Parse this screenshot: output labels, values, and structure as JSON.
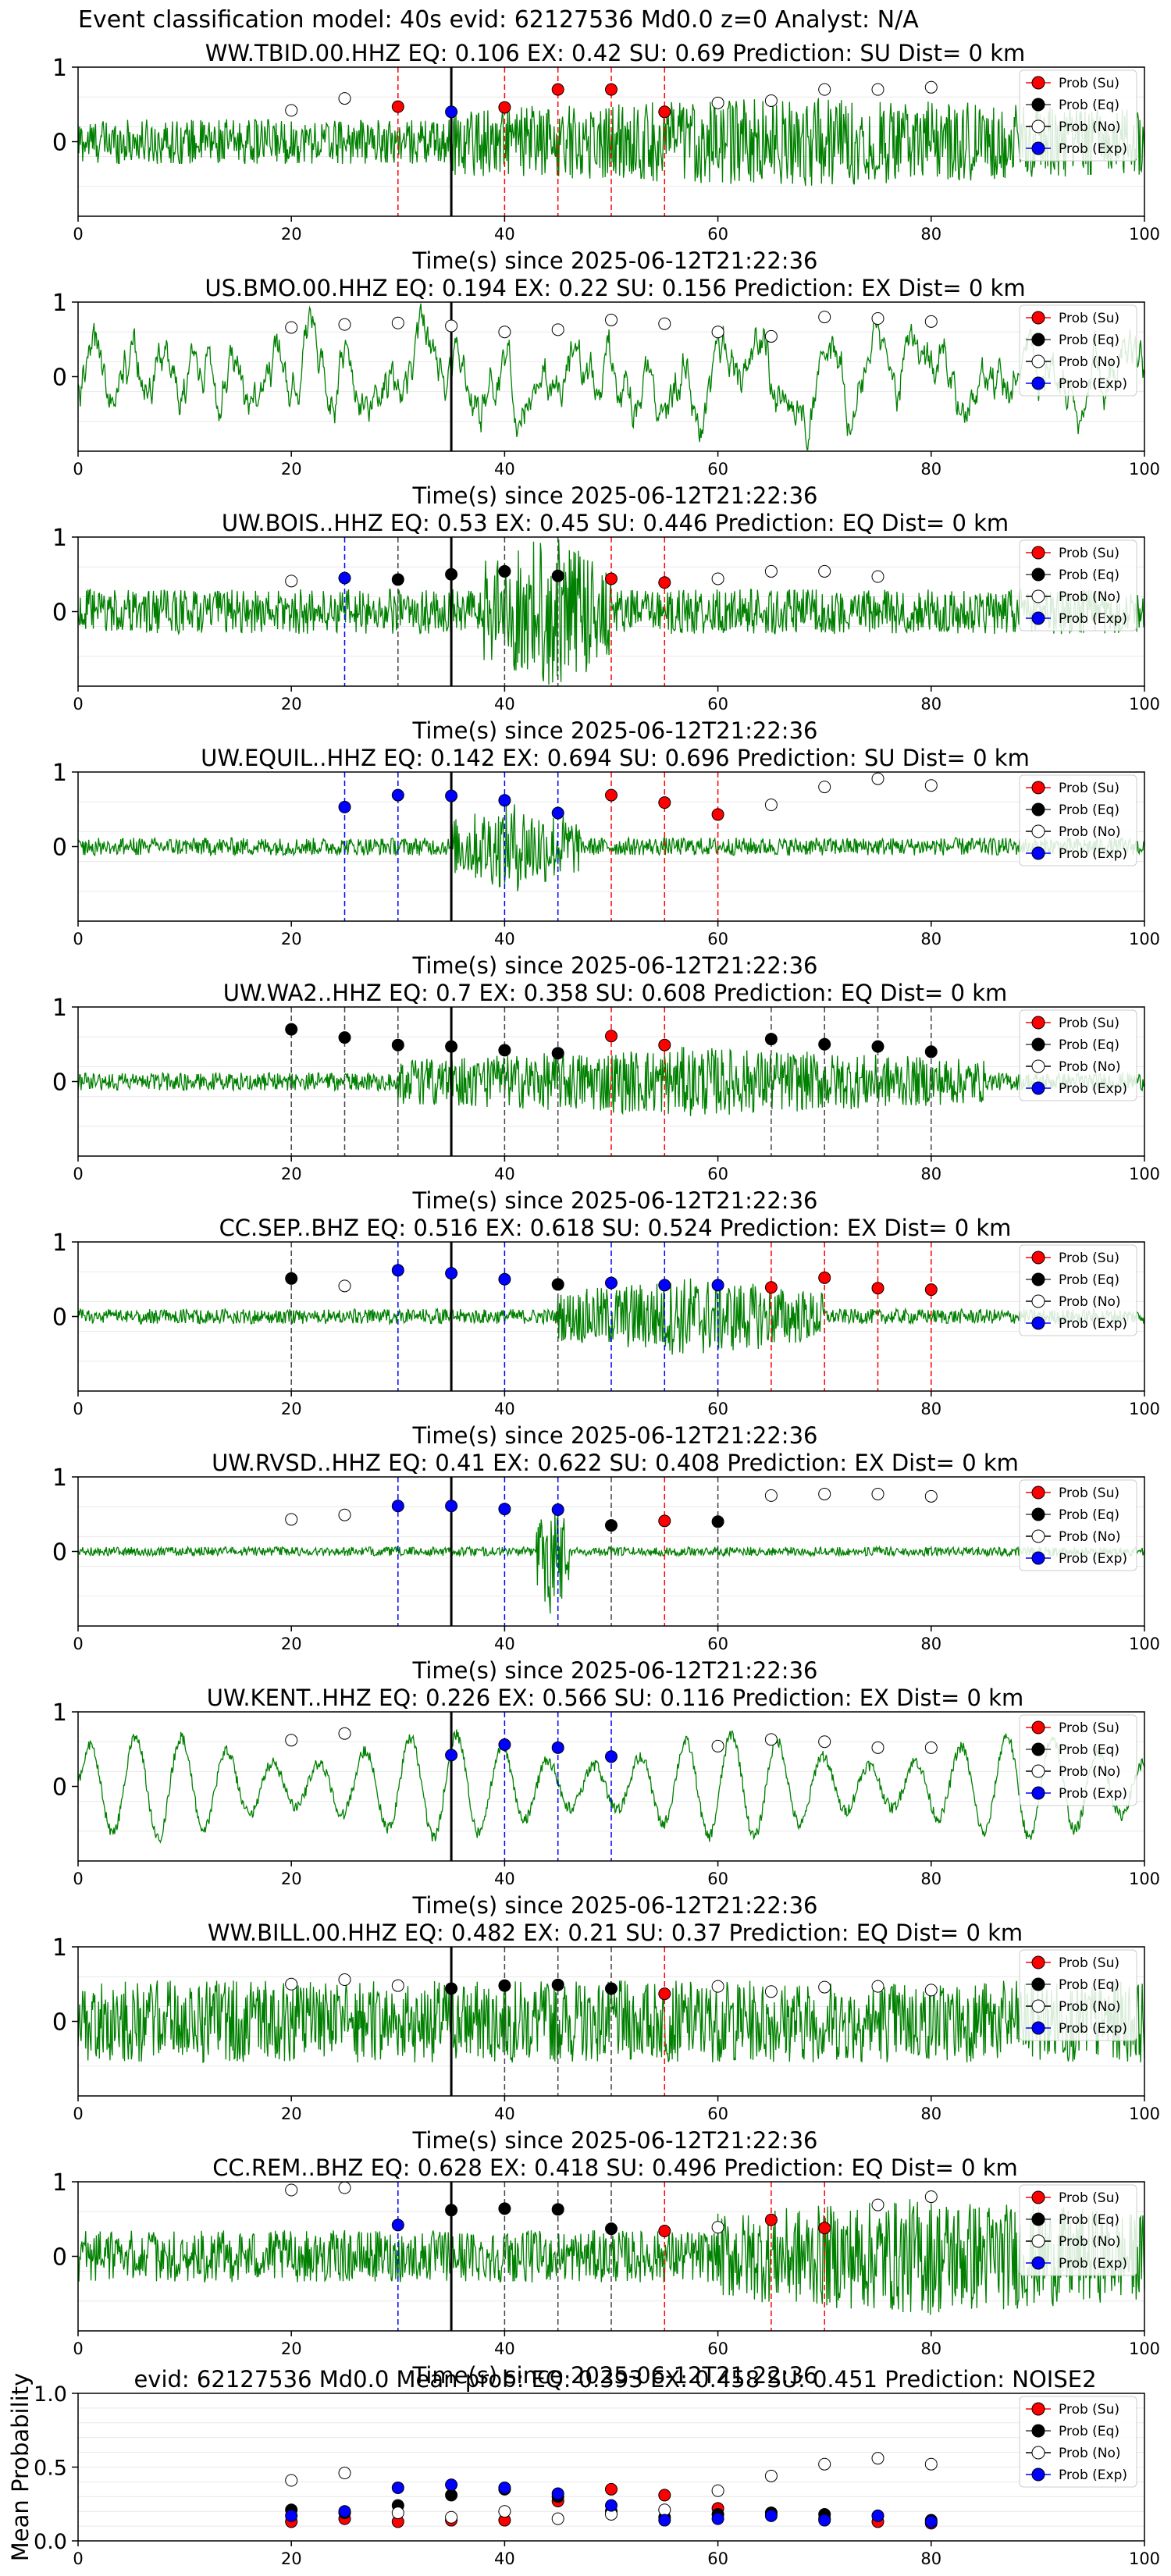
{
  "title": "Event classification model: 40s evid: 62127536 Md0.0 z=0 Analyst: N/A",
  "colors": {
    "trace": "#008000",
    "su": "#ff0000",
    "eq": "#000000",
    "no": "#ffffff",
    "exp": "#0000ff",
    "grid": "#e8e8e8"
  },
  "legend": [
    "Prob (Su)",
    "Prob (Eq)",
    "Prob (No)",
    "Prob (Exp)"
  ],
  "chart_data": [
    {
      "type": "line",
      "title": "WW.TBID.00.HHZ   EQ: 0.106   EX: 0.42   SU: 0.69   Prediction: SU    Dist= 0 km",
      "xlabel": "Time(s) since 2025-06-12T21:22:36",
      "xlim": [
        0,
        100
      ],
      "ylim": [
        -1,
        1
      ],
      "xticks": [
        0,
        20,
        40,
        60,
        80,
        100
      ],
      "yticks": [
        0,
        1
      ],
      "event_time": 35,
      "waveform": {
        "style": "noise",
        "amp": 0.3,
        "burst": [
          35,
          100,
          0.3
        ]
      },
      "probs": [
        {
          "t": 20,
          "c": "no",
          "p": 0.42
        },
        {
          "t": 25,
          "c": "no",
          "p": 0.58
        },
        {
          "t": 30,
          "c": "su",
          "p": 0.47
        },
        {
          "t": 35,
          "c": "exp",
          "p": 0.4
        },
        {
          "t": 40,
          "c": "su",
          "p": 0.46
        },
        {
          "t": 45,
          "c": "su",
          "p": 0.7
        },
        {
          "t": 50,
          "c": "su",
          "p": 0.7
        },
        {
          "t": 55,
          "c": "su",
          "p": 0.4
        },
        {
          "t": 60,
          "c": "no",
          "p": 0.52
        },
        {
          "t": 65,
          "c": "no",
          "p": 0.55
        },
        {
          "t": 70,
          "c": "no",
          "p": 0.7
        },
        {
          "t": 75,
          "c": "no",
          "p": 0.7
        },
        {
          "t": 80,
          "c": "no",
          "p": 0.73
        }
      ]
    },
    {
      "type": "line",
      "title": "US.BMO.00.HHZ   EQ: 0.194   EX: 0.22   SU: 0.156   Prediction: EX    Dist= 0 km",
      "xlabel": "Time(s) since 2025-06-12T21:22:36",
      "xlim": [
        0,
        100
      ],
      "ylim": [
        -1,
        1
      ],
      "xticks": [
        0,
        20,
        40,
        60,
        80,
        100
      ],
      "yticks": [
        0,
        1
      ],
      "event_time": 35,
      "waveform": {
        "style": "wavy",
        "amp": 0.55,
        "period": 3.5
      },
      "probs": [
        {
          "t": 20,
          "c": "no",
          "p": 0.66
        },
        {
          "t": 25,
          "c": "no",
          "p": 0.7
        },
        {
          "t": 30,
          "c": "no",
          "p": 0.72
        },
        {
          "t": 35,
          "c": "no",
          "p": 0.68
        },
        {
          "t": 40,
          "c": "no",
          "p": 0.6
        },
        {
          "t": 45,
          "c": "no",
          "p": 0.63
        },
        {
          "t": 50,
          "c": "no",
          "p": 0.76
        },
        {
          "t": 55,
          "c": "no",
          "p": 0.71
        },
        {
          "t": 60,
          "c": "no",
          "p": 0.6
        },
        {
          "t": 65,
          "c": "no",
          "p": 0.54
        },
        {
          "t": 70,
          "c": "no",
          "p": 0.8
        },
        {
          "t": 75,
          "c": "no",
          "p": 0.78
        },
        {
          "t": 80,
          "c": "no",
          "p": 0.74
        }
      ]
    },
    {
      "type": "line",
      "title": "UW.BOIS..HHZ   EQ: 0.53   EX: 0.45   SU: 0.446   Prediction: EQ    Dist= 0 km",
      "xlabel": "Time(s) since 2025-06-12T21:22:36",
      "xlim": [
        0,
        100
      ],
      "ylim": [
        -1,
        1
      ],
      "xticks": [
        0,
        20,
        40,
        60,
        80,
        100
      ],
      "yticks": [
        0,
        1
      ],
      "event_time": 35,
      "waveform": {
        "style": "noise",
        "amp": 0.3,
        "burst": [
          38,
          50,
          0.75
        ]
      },
      "probs": [
        {
          "t": 20,
          "c": "no",
          "p": 0.41
        },
        {
          "t": 25,
          "c": "exp",
          "p": 0.45
        },
        {
          "t": 30,
          "c": "eq",
          "p": 0.43
        },
        {
          "t": 35,
          "c": "eq",
          "p": 0.5
        },
        {
          "t": 40,
          "c": "eq",
          "p": 0.54
        },
        {
          "t": 45,
          "c": "eq",
          "p": 0.48
        },
        {
          "t": 50,
          "c": "su",
          "p": 0.44
        },
        {
          "t": 55,
          "c": "su",
          "p": 0.39
        },
        {
          "t": 60,
          "c": "no",
          "p": 0.44
        },
        {
          "t": 65,
          "c": "no",
          "p": 0.54
        },
        {
          "t": 70,
          "c": "no",
          "p": 0.54
        },
        {
          "t": 75,
          "c": "no",
          "p": 0.47
        }
      ]
    },
    {
      "type": "line",
      "title": "UW.EQUIL..HHZ   EQ: 0.142   EX: 0.694   SU: 0.696   Prediction: SU    Dist= 0 km",
      "xlabel": "Time(s) since 2025-06-12T21:22:36",
      "xlim": [
        0,
        100
      ],
      "ylim": [
        -1,
        1
      ],
      "xticks": [
        0,
        20,
        40,
        60,
        80,
        100
      ],
      "yticks": [
        0,
        1
      ],
      "event_time": 35,
      "waveform": {
        "style": "noise",
        "amp": 0.12,
        "burst": [
          35,
          47,
          0.5
        ]
      },
      "probs": [
        {
          "t": 25,
          "c": "exp",
          "p": 0.53
        },
        {
          "t": 30,
          "c": "exp",
          "p": 0.69
        },
        {
          "t": 35,
          "c": "exp",
          "p": 0.68
        },
        {
          "t": 40,
          "c": "exp",
          "p": 0.62
        },
        {
          "t": 45,
          "c": "exp",
          "p": 0.45
        },
        {
          "t": 50,
          "c": "su",
          "p": 0.69
        },
        {
          "t": 55,
          "c": "su",
          "p": 0.59
        },
        {
          "t": 60,
          "c": "su",
          "p": 0.43
        },
        {
          "t": 65,
          "c": "no",
          "p": 0.56
        },
        {
          "t": 70,
          "c": "no",
          "p": 0.8
        },
        {
          "t": 75,
          "c": "no",
          "p": 0.91
        },
        {
          "t": 80,
          "c": "no",
          "p": 0.82
        }
      ]
    },
    {
      "type": "line",
      "title": "UW.WA2..HHZ   EQ: 0.7   EX: 0.358   SU: 0.608   Prediction: EQ    Dist= 0 km",
      "xlabel": "Time(s) since 2025-06-12T21:22:36",
      "xlim": [
        0,
        100
      ],
      "ylim": [
        -1,
        1
      ],
      "xticks": [
        0,
        20,
        40,
        60,
        80,
        100
      ],
      "yticks": [
        0,
        1
      ],
      "event_time": 35,
      "waveform": {
        "style": "noise",
        "amp": 0.12,
        "burst": [
          30,
          85,
          0.35
        ]
      },
      "probs": [
        {
          "t": 20,
          "c": "eq",
          "p": 0.7
        },
        {
          "t": 25,
          "c": "eq",
          "p": 0.59
        },
        {
          "t": 30,
          "c": "eq",
          "p": 0.49
        },
        {
          "t": 35,
          "c": "eq",
          "p": 0.47
        },
        {
          "t": 40,
          "c": "eq",
          "p": 0.42
        },
        {
          "t": 45,
          "c": "eq",
          "p": 0.38
        },
        {
          "t": 50,
          "c": "su",
          "p": 0.61
        },
        {
          "t": 55,
          "c": "su",
          "p": 0.49
        },
        {
          "t": 65,
          "c": "eq",
          "p": 0.57
        },
        {
          "t": 70,
          "c": "eq",
          "p": 0.5
        },
        {
          "t": 75,
          "c": "eq",
          "p": 0.47
        },
        {
          "t": 80,
          "c": "eq",
          "p": 0.4
        }
      ]
    },
    {
      "type": "line",
      "title": "CC.SEP..BHZ   EQ: 0.516   EX: 0.618   SU: 0.524   Prediction: EX    Dist= 0 km",
      "xlabel": "Time(s) since 2025-06-12T21:22:36",
      "xlim": [
        0,
        100
      ],
      "ylim": [
        -1,
        1
      ],
      "xticks": [
        0,
        20,
        40,
        60,
        80,
        100
      ],
      "yticks": [
        0,
        1
      ],
      "event_time": 35,
      "waveform": {
        "style": "noise",
        "amp": 0.1,
        "burst": [
          45,
          70,
          0.45
        ]
      },
      "probs": [
        {
          "t": 20,
          "c": "eq",
          "p": 0.51
        },
        {
          "t": 25,
          "c": "no",
          "p": 0.41
        },
        {
          "t": 30,
          "c": "exp",
          "p": 0.62
        },
        {
          "t": 35,
          "c": "exp",
          "p": 0.58
        },
        {
          "t": 40,
          "c": "exp",
          "p": 0.5
        },
        {
          "t": 45,
          "c": "eq",
          "p": 0.43
        },
        {
          "t": 50,
          "c": "exp",
          "p": 0.45
        },
        {
          "t": 55,
          "c": "exp",
          "p": 0.42
        },
        {
          "t": 60,
          "c": "exp",
          "p": 0.42
        },
        {
          "t": 65,
          "c": "su",
          "p": 0.39
        },
        {
          "t": 70,
          "c": "su",
          "p": 0.52
        },
        {
          "t": 75,
          "c": "su",
          "p": 0.38
        },
        {
          "t": 80,
          "c": "su",
          "p": 0.36
        }
      ]
    },
    {
      "type": "line",
      "title": "UW.RVSD..HHZ   EQ: 0.41   EX: 0.622   SU: 0.408   Prediction: EX    Dist= 0 km",
      "xlabel": "Time(s) since 2025-06-12T21:22:36",
      "xlim": [
        0,
        100
      ],
      "ylim": [
        -1,
        1
      ],
      "xticks": [
        0,
        20,
        40,
        60,
        80,
        100
      ],
      "yticks": [
        0,
        1
      ],
      "event_time": 35,
      "waveform": {
        "style": "noise",
        "amp": 0.06,
        "burst": [
          43,
          46,
          0.85
        ]
      },
      "probs": [
        {
          "t": 20,
          "c": "no",
          "p": 0.43
        },
        {
          "t": 25,
          "c": "no",
          "p": 0.49
        },
        {
          "t": 30,
          "c": "exp",
          "p": 0.61
        },
        {
          "t": 35,
          "c": "exp",
          "p": 0.61
        },
        {
          "t": 40,
          "c": "exp",
          "p": 0.57
        },
        {
          "t": 45,
          "c": "exp",
          "p": 0.56
        },
        {
          "t": 50,
          "c": "eq",
          "p": 0.35
        },
        {
          "t": 55,
          "c": "su",
          "p": 0.41
        },
        {
          "t": 60,
          "c": "eq",
          "p": 0.4
        },
        {
          "t": 65,
          "c": "no",
          "p": 0.75
        },
        {
          "t": 70,
          "c": "no",
          "p": 0.77
        },
        {
          "t": 75,
          "c": "no",
          "p": 0.77
        },
        {
          "t": 80,
          "c": "no",
          "p": 0.74
        }
      ]
    },
    {
      "type": "line",
      "title": "UW.KENT..HHZ   EQ: 0.226   EX: 0.566   SU: 0.116   Prediction: EX    Dist= 0 km",
      "xlabel": "Time(s) since 2025-06-12T21:22:36",
      "xlim": [
        0,
        100
      ],
      "ylim": [
        -1,
        1
      ],
      "xticks": [
        0,
        20,
        40,
        60,
        80,
        100
      ],
      "yticks": [
        0,
        1
      ],
      "event_time": 35,
      "waveform": {
        "style": "sine",
        "amp": 0.7,
        "period": 4.3
      },
      "probs": [
        {
          "t": 20,
          "c": "no",
          "p": 0.62
        },
        {
          "t": 25,
          "c": "no",
          "p": 0.71
        },
        {
          "t": 35,
          "c": "exp",
          "p": 0.42
        },
        {
          "t": 40,
          "c": "exp",
          "p": 0.56
        },
        {
          "t": 45,
          "c": "exp",
          "p": 0.52
        },
        {
          "t": 50,
          "c": "exp",
          "p": 0.4
        },
        {
          "t": 60,
          "c": "no",
          "p": 0.54
        },
        {
          "t": 65,
          "c": "no",
          "p": 0.63
        },
        {
          "t": 70,
          "c": "no",
          "p": 0.6
        },
        {
          "t": 75,
          "c": "no",
          "p": 0.52
        },
        {
          "t": 80,
          "c": "no",
          "p": 0.52
        }
      ]
    },
    {
      "type": "line",
      "title": "WW.BILL.00.HHZ   EQ: 0.482   EX: 0.21   SU: 0.37   Prediction: EQ    Dist= 0 km",
      "xlabel": "Time(s) since 2025-06-12T21:22:36",
      "xlim": [
        0,
        100
      ],
      "ylim": [
        -1,
        1
      ],
      "xticks": [
        0,
        20,
        40,
        60,
        80,
        100
      ],
      "yticks": [
        0,
        1
      ],
      "event_time": 35,
      "waveform": {
        "style": "noise",
        "amp": 0.55
      },
      "probs": [
        {
          "t": 20,
          "c": "no",
          "p": 0.5
        },
        {
          "t": 25,
          "c": "no",
          "p": 0.56
        },
        {
          "t": 30,
          "c": "no",
          "p": 0.48
        },
        {
          "t": 35,
          "c": "eq",
          "p": 0.44
        },
        {
          "t": 40,
          "c": "eq",
          "p": 0.48
        },
        {
          "t": 45,
          "c": "eq",
          "p": 0.49
        },
        {
          "t": 50,
          "c": "eq",
          "p": 0.44
        },
        {
          "t": 55,
          "c": "su",
          "p": 0.37
        },
        {
          "t": 60,
          "c": "no",
          "p": 0.47
        },
        {
          "t": 65,
          "c": "no",
          "p": 0.4
        },
        {
          "t": 70,
          "c": "no",
          "p": 0.46
        },
        {
          "t": 75,
          "c": "no",
          "p": 0.47
        },
        {
          "t": 80,
          "c": "no",
          "p": 0.42
        }
      ]
    },
    {
      "type": "line",
      "title": "CC.REM..BHZ   EQ: 0.628   EX: 0.418   SU: 0.496   Prediction: EQ    Dist= 0 km",
      "xlabel": "Time(s) since 2025-06-12T21:22:36",
      "xlim": [
        0,
        100
      ],
      "ylim": [
        -1,
        1
      ],
      "xticks": [
        0,
        20,
        40,
        60,
        80,
        100
      ],
      "yticks": [
        0,
        1
      ],
      "event_time": 35,
      "waveform": {
        "style": "noise",
        "amp": 0.35,
        "burst": [
          60,
          100,
          0.45
        ]
      },
      "probs": [
        {
          "t": 20,
          "c": "no",
          "p": 0.89
        },
        {
          "t": 25,
          "c": "no",
          "p": 0.92
        },
        {
          "t": 30,
          "c": "exp",
          "p": 0.42
        },
        {
          "t": 35,
          "c": "eq",
          "p": 0.62
        },
        {
          "t": 40,
          "c": "eq",
          "p": 0.64
        },
        {
          "t": 45,
          "c": "eq",
          "p": 0.63
        },
        {
          "t": 50,
          "c": "eq",
          "p": 0.37
        },
        {
          "t": 55,
          "c": "su",
          "p": 0.34
        },
        {
          "t": 60,
          "c": "no",
          "p": 0.39
        },
        {
          "t": 65,
          "c": "su",
          "p": 0.49
        },
        {
          "t": 70,
          "c": "su",
          "p": 0.38
        },
        {
          "t": 75,
          "c": "no",
          "p": 0.69
        },
        {
          "t": 80,
          "c": "no",
          "p": 0.8
        }
      ]
    },
    {
      "type": "scatter",
      "title": "evid: 62127536  Md0.0   Mean prob:   EQ: 0.393   EX: 0.458   SU: 0.451   Prediction: NOISE2",
      "ylabel": "Mean Probability",
      "xlim": [
        0,
        100
      ],
      "ylim": [
        0,
        1
      ],
      "xticks": [
        0,
        20,
        40,
        60,
        80,
        100
      ],
      "yticks": [
        0,
        0.5,
        1
      ],
      "ytick_labels": [
        "0.0",
        "0.5",
        "1.0"
      ],
      "series": [
        {
          "name": "Prob (Su)",
          "c": "su",
          "x": [
            20,
            25,
            30,
            35,
            40,
            45,
            50,
            55,
            60,
            65,
            70,
            75,
            80
          ],
          "y": [
            0.13,
            0.15,
            0.13,
            0.14,
            0.14,
            0.27,
            0.35,
            0.31,
            0.22,
            0.19,
            0.15,
            0.13,
            0.12
          ]
        },
        {
          "name": "Prob (Eq)",
          "c": "eq",
          "x": [
            20,
            25,
            30,
            35,
            40,
            45,
            50,
            55,
            60,
            65,
            70,
            75,
            80
          ],
          "y": [
            0.21,
            0.19,
            0.24,
            0.31,
            0.35,
            0.3,
            0.2,
            0.16,
            0.18,
            0.19,
            0.18,
            0.17,
            0.14
          ]
        },
        {
          "name": "Prob (No)",
          "c": "no",
          "x": [
            20,
            25,
            30,
            35,
            40,
            45,
            50,
            55,
            60,
            65,
            70,
            75,
            80
          ],
          "y": [
            0.41,
            0.46,
            0.19,
            0.16,
            0.2,
            0.15,
            0.18,
            0.21,
            0.34,
            0.44,
            0.52,
            0.56,
            0.52
          ]
        },
        {
          "name": "Prob (Exp)",
          "c": "exp",
          "x": [
            20,
            25,
            30,
            35,
            40,
            45,
            50,
            55,
            60,
            65,
            70,
            75,
            80
          ],
          "y": [
            0.17,
            0.2,
            0.36,
            0.38,
            0.36,
            0.32,
            0.24,
            0.14,
            0.15,
            0.17,
            0.14,
            0.17,
            0.13
          ]
        }
      ]
    }
  ]
}
